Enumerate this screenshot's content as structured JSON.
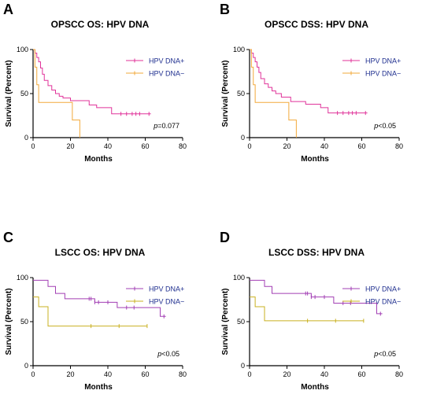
{
  "chart_data": [
    {
      "type": "line",
      "letter": "A",
      "title": "OPSCC OS: HPV DNA",
      "xlabel": "Months",
      "ylabel": "Survival (Percent)",
      "xlim": [
        0,
        80
      ],
      "ylim": [
        0,
        100
      ],
      "xticks": [
        "0",
        "20",
        "40",
        "60",
        "80"
      ],
      "yticks": [
        "0",
        "50",
        "100"
      ],
      "annotation_prefix": "p",
      "annotation_value": "=0.077",
      "legend_position": "top-right",
      "series": [
        {
          "name": "HPV DNA+",
          "color": "#e0339a",
          "steps": [
            [
              0,
              100
            ],
            [
              1,
              96
            ],
            [
              2,
              91
            ],
            [
              3,
              86
            ],
            [
              4,
              79
            ],
            [
              5,
              72
            ],
            [
              6,
              65
            ],
            [
              8,
              59
            ],
            [
              10,
              54
            ],
            [
              12,
              50
            ],
            [
              14,
              47
            ],
            [
              16,
              45
            ],
            [
              20,
              42
            ],
            [
              30,
              37
            ],
            [
              34,
              34
            ],
            [
              42,
              27
            ],
            [
              63,
              27
            ]
          ],
          "censored": [
            [
              47,
              27
            ],
            [
              50,
              27
            ],
            [
              53,
              27
            ],
            [
              55,
              27
            ],
            [
              57,
              27
            ],
            [
              62,
              27
            ]
          ]
        },
        {
          "name": "HPV DNA−",
          "color": "#f2a93b",
          "steps": [
            [
              0,
              100
            ],
            [
              1,
              80
            ],
            [
              2,
              60
            ],
            [
              3,
              40
            ],
            [
              21,
              20
            ],
            [
              25,
              0
            ]
          ],
          "censored": []
        }
      ]
    },
    {
      "type": "line",
      "letter": "B",
      "title": "OPSCC DSS: HPV DNA",
      "xlabel": "Months",
      "ylabel": "Survival (Percent)",
      "xlim": [
        0,
        80
      ],
      "ylim": [
        0,
        100
      ],
      "xticks": [
        "0",
        "20",
        "40",
        "60",
        "80"
      ],
      "yticks": [
        "0",
        "50",
        "100"
      ],
      "annotation_prefix": "p",
      "annotation_value": "<0.05",
      "legend_position": "top-right",
      "series": [
        {
          "name": "HPV DNA+",
          "color": "#e0339a",
          "steps": [
            [
              0,
              100
            ],
            [
              1,
              96
            ],
            [
              2,
              91
            ],
            [
              3,
              86
            ],
            [
              4,
              80
            ],
            [
              5,
              74
            ],
            [
              6,
              67
            ],
            [
              8,
              61
            ],
            [
              10,
              57
            ],
            [
              12,
              53
            ],
            [
              14,
              50
            ],
            [
              17,
              46
            ],
            [
              22,
              41
            ],
            [
              30,
              38
            ],
            [
              38,
              34
            ],
            [
              42,
              28
            ],
            [
              63,
              28
            ]
          ],
          "censored": [
            [
              47,
              28
            ],
            [
              50,
              28
            ],
            [
              53,
              28
            ],
            [
              55,
              28
            ],
            [
              57,
              28
            ],
            [
              62,
              28
            ]
          ]
        },
        {
          "name": "HPV DNA−",
          "color": "#f2a93b",
          "steps": [
            [
              0,
              100
            ],
            [
              1,
              80
            ],
            [
              2,
              60
            ],
            [
              3,
              40
            ],
            [
              21,
              20
            ],
            [
              25,
              0
            ]
          ],
          "censored": []
        }
      ]
    },
    {
      "type": "line",
      "letter": "C",
      "title": "LSCC OS: HPV DNA",
      "xlabel": "Months",
      "ylabel": "Survival (Percent)",
      "xlim": [
        0,
        80
      ],
      "ylim": [
        0,
        100
      ],
      "xticks": [
        "0",
        "20",
        "40",
        "60",
        "80"
      ],
      "yticks": [
        "0",
        "50",
        "100"
      ],
      "annotation_prefix": "p",
      "annotation_value": "<0.05",
      "legend_position": "top-right",
      "series": [
        {
          "name": "HPV DNA+",
          "color": "#a23fb4",
          "steps": [
            [
              0,
              97
            ],
            [
              8,
              90
            ],
            [
              12,
              82
            ],
            [
              17,
              76
            ],
            [
              33,
              72
            ],
            [
              45,
              66
            ],
            [
              68,
              56
            ],
            [
              71,
              56
            ]
          ],
          "censored": [
            [
              30,
              76
            ],
            [
              31,
              76
            ],
            [
              33,
              72
            ],
            [
              35,
              72
            ],
            [
              40,
              72
            ],
            [
              50,
              66
            ],
            [
              54,
              66
            ],
            [
              70,
              56
            ]
          ]
        },
        {
          "name": "HPV DNA−",
          "color": "#c9b020",
          "steps": [
            [
              0,
              78
            ],
            [
              3,
              67
            ],
            [
              8,
              45
            ],
            [
              61,
              45
            ]
          ],
          "censored": [
            [
              31,
              45
            ],
            [
              46,
              45
            ],
            [
              61,
              45
            ]
          ]
        }
      ]
    },
    {
      "type": "line",
      "letter": "D",
      "title": "LSCC DSS: HPV DNA",
      "xlabel": "Months",
      "ylabel": "Survival (Percent)",
      "xlim": [
        0,
        80
      ],
      "ylim": [
        0,
        100
      ],
      "xticks": [
        "0",
        "20",
        "40",
        "60",
        "80"
      ],
      "yticks": [
        "0",
        "50",
        "100"
      ],
      "annotation_prefix": "p",
      "annotation_value": "<0.05",
      "legend_position": "top-right",
      "series": [
        {
          "name": "HPV DNA+",
          "color": "#a23fb4",
          "steps": [
            [
              0,
              97
            ],
            [
              8,
              90
            ],
            [
              12,
              82
            ],
            [
              33,
              78
            ],
            [
              45,
              71
            ],
            [
              68,
              59
            ],
            [
              71,
              59
            ]
          ],
          "censored": [
            [
              30,
              82
            ],
            [
              31,
              82
            ],
            [
              33,
              78
            ],
            [
              35,
              78
            ],
            [
              40,
              78
            ],
            [
              50,
              71
            ],
            [
              54,
              71
            ],
            [
              70,
              59
            ]
          ]
        },
        {
          "name": "HPV DNA−",
          "color": "#c9b020",
          "steps": [
            [
              0,
              78
            ],
            [
              3,
              67
            ],
            [
              8,
              51
            ],
            [
              61,
              51
            ]
          ],
          "censored": [
            [
              31,
              51
            ],
            [
              46,
              51
            ],
            [
              61,
              51
            ]
          ]
        }
      ]
    }
  ]
}
